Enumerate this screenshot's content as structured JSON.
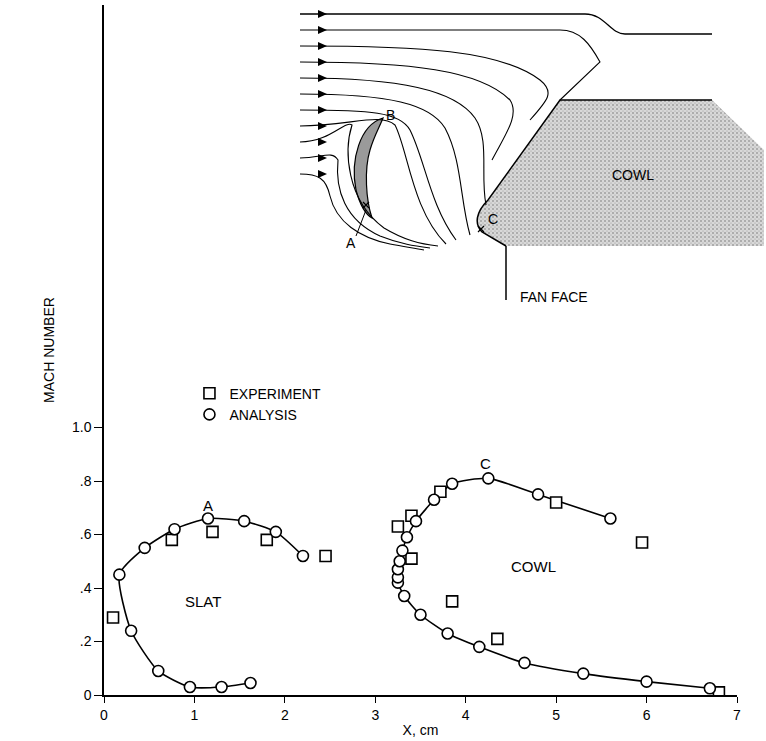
{
  "chart_data": {
    "type": "scatter",
    "x_label": "X, cm",
    "y_label": "MACH NUMBER",
    "xlim": [
      0,
      7
    ],
    "xticks": [
      0,
      1,
      2,
      3,
      4,
      5,
      6,
      7
    ],
    "ylim": [
      0,
      2.58
    ],
    "yticks": [
      0,
      {
        "value": 0.2,
        "label": ".2"
      },
      {
        "value": 0.4,
        "label": ".4"
      },
      {
        "value": 0.6,
        "label": ".6"
      },
      {
        "value": 0.8,
        "label": ".8"
      },
      {
        "value": 1.0,
        "label": "1.0"
      }
    ],
    "grid": false,
    "legend": "left",
    "series": [
      {
        "name": "EXPERIMENT",
        "color": "#000000",
        "marker": "square",
        "line_style": "none",
        "x": [
          0.1,
          0.75,
          1.2,
          1.8,
          2.45,
          3.25,
          3.4,
          3.72,
          5.0,
          5.95,
          3.4,
          3.85,
          4.35,
          6.8
        ],
        "values": [
          0.29,
          0.58,
          0.61,
          0.58,
          0.52,
          0.63,
          0.67,
          0.76,
          0.72,
          0.57,
          0.51,
          0.35,
          0.21,
          0.01
        ]
      },
      {
        "name": "ANALYSIS",
        "color": "#000000",
        "marker": "circle",
        "line_style": "solid",
        "x": [
          1.62,
          1.3,
          0.95,
          0.6,
          0.3,
          0.17,
          0.45,
          0.78,
          1.15,
          1.55,
          1.9,
          2.2,
          null,
          6.7,
          6.0,
          5.3,
          4.65,
          4.15,
          3.8,
          3.5,
          3.32,
          3.25,
          3.25,
          3.25,
          3.27,
          3.3,
          3.35,
          3.45,
          3.65,
          3.85,
          4.25,
          4.8,
          5.6
        ],
        "values": [
          0.045,
          0.03,
          0.03,
          0.09,
          0.24,
          0.45,
          0.55,
          0.62,
          0.66,
          0.65,
          0.61,
          0.52,
          null,
          0.025,
          0.05,
          0.08,
          0.12,
          0.18,
          0.23,
          0.3,
          0.37,
          0.42,
          0.44,
          0.47,
          0.5,
          0.54,
          0.59,
          0.65,
          0.73,
          0.79,
          0.81,
          0.75,
          0.66
        ]
      }
    ],
    "annotations": [
      {
        "text": "A",
        "x": 1.15,
        "y": 0.71
      },
      {
        "text": "C",
        "x": 4.22,
        "y": 0.865
      },
      {
        "text": "SLAT",
        "x": 1.1,
        "y": 0.35
      },
      {
        "text": "COWL",
        "x": 4.75,
        "y": 0.48
      }
    ],
    "inset_labels": {
      "cowl": "COWL",
      "fan_face": "FAN FACE",
      "a": "A",
      "b": "B",
      "c": "C"
    }
  }
}
